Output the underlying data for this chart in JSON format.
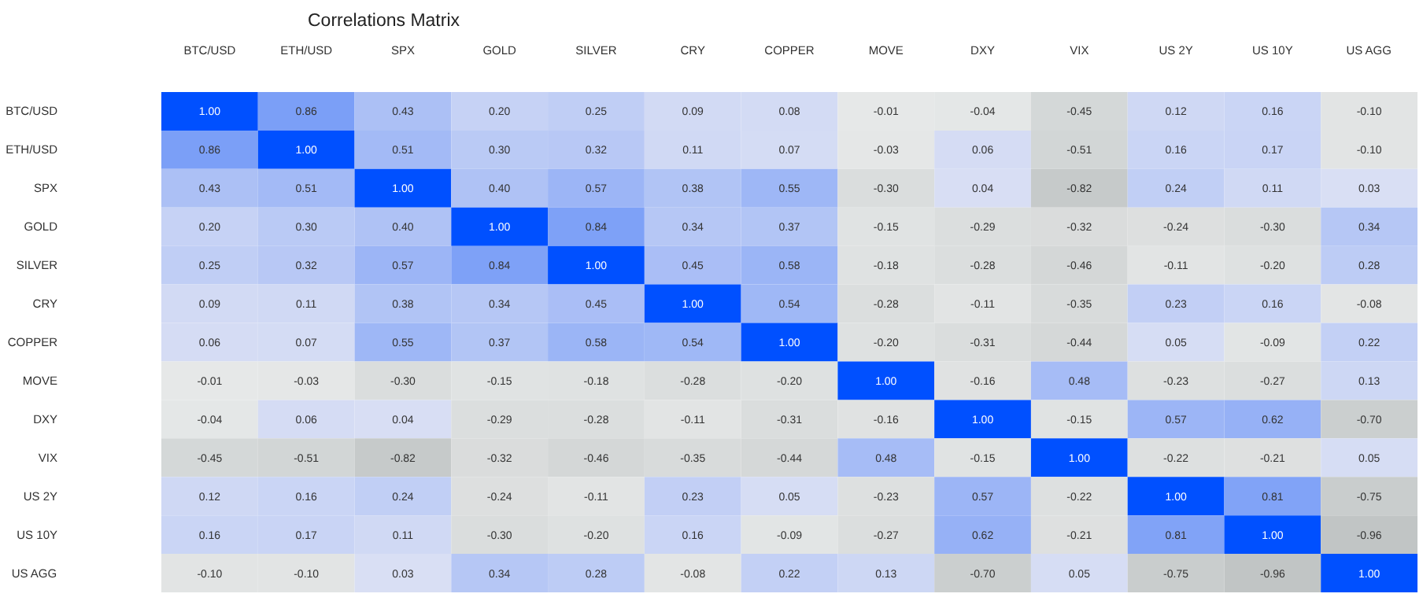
{
  "chart_data": {
    "type": "heatmap",
    "title": "Correlations Matrix",
    "categories": [
      "BTC/USD",
      "ETH/USD",
      "SPX",
      "GOLD",
      "SILVER",
      "CRY",
      "COPPER",
      "MOVE",
      "DXY",
      "VIX",
      "US 2Y",
      "US 10Y",
      "US AGG"
    ],
    "y_categories": [
      "BTC/USD",
      "ETH/USD",
      "SPX",
      "GOLD",
      "SILVER",
      "CRY",
      "COPPER",
      "MOVE",
      "DXY",
      "VIX",
      "US 2Y",
      "US 10Y",
      "US AGG"
    ],
    "cells": [
      [
        1.0,
        0.86,
        0.43,
        0.2,
        0.25,
        0.09,
        0.08,
        -0.01,
        -0.04,
        -0.45,
        0.12,
        0.16,
        -0.1
      ],
      [
        0.86,
        1.0,
        0.51,
        0.3,
        0.32,
        0.11,
        0.07,
        -0.03,
        0.06,
        -0.51,
        0.16,
        0.17,
        -0.1
      ],
      [
        0.43,
        0.51,
        1.0,
        0.4,
        0.57,
        0.38,
        0.55,
        -0.3,
        0.04,
        -0.82,
        0.24,
        0.11,
        0.03
      ],
      [
        0.2,
        0.3,
        0.4,
        1.0,
        0.84,
        0.34,
        0.37,
        -0.15,
        -0.29,
        -0.32,
        -0.24,
        -0.3,
        0.34
      ],
      [
        0.25,
        0.32,
        0.57,
        0.84,
        1.0,
        0.45,
        0.58,
        -0.18,
        -0.28,
        -0.46,
        -0.11,
        -0.2,
        0.28
      ],
      [
        0.09,
        0.11,
        0.38,
        0.34,
        0.45,
        1.0,
        0.54,
        -0.28,
        -0.11,
        -0.35,
        0.23,
        0.16,
        -0.08
      ],
      [
        0.06,
        0.07,
        0.55,
        0.37,
        0.58,
        0.54,
        1.0,
        -0.2,
        -0.31,
        -0.44,
        0.05,
        -0.09,
        0.22
      ],
      [
        -0.01,
        -0.03,
        -0.3,
        -0.15,
        -0.18,
        -0.28,
        -0.2,
        1.0,
        -0.16,
        0.48,
        -0.23,
        -0.27,
        0.13
      ],
      [
        -0.04,
        0.06,
        0.04,
        -0.29,
        -0.28,
        -0.11,
        -0.31,
        -0.16,
        1.0,
        -0.15,
        0.57,
        0.62,
        -0.7
      ],
      [
        -0.45,
        -0.51,
        -0.82,
        -0.32,
        -0.46,
        -0.35,
        -0.44,
        0.48,
        -0.15,
        1.0,
        -0.22,
        -0.21,
        0.05
      ],
      [
        0.12,
        0.16,
        0.24,
        -0.24,
        -0.11,
        0.23,
        0.05,
        -0.23,
        0.57,
        -0.22,
        1.0,
        0.81,
        -0.75
      ],
      [
        0.16,
        0.17,
        0.11,
        -0.3,
        -0.2,
        0.16,
        -0.09,
        -0.27,
        0.62,
        -0.21,
        0.81,
        1.0,
        -0.96
      ],
      [
        -0.1,
        -0.1,
        0.03,
        0.34,
        0.28,
        -0.08,
        0.22,
        0.13,
        -0.7,
        0.05,
        -0.75,
        -0.96,
        1.0
      ]
    ],
    "cell_labels": [
      [
        "1.00",
        "0.86",
        "0.43",
        "0.20",
        "0.25",
        "0.09",
        "0.08",
        "-0.01",
        "-0.04",
        "-0.45",
        "0.12",
        "0.16",
        "-0.10"
      ],
      [
        "0.86",
        "1.00",
        "0.51",
        "0.30",
        "0.32",
        "0.11",
        "0.07",
        "-0.03",
        "0.06",
        "-0.51",
        "0.16",
        "0.17",
        "-0.10"
      ],
      [
        "0.43",
        "0.51",
        "1.00",
        "0.40",
        "0.57",
        "0.38",
        "0.55",
        "-0.30",
        "0.04",
        "-0.82",
        "0.24",
        "0.11",
        "0.03"
      ],
      [
        "0.20",
        "0.30",
        "0.40",
        "1.00",
        "0.84",
        "0.34",
        "0.37",
        "-0.15",
        "-0.29",
        "-0.32",
        "-0.24",
        "-0.30",
        "0.34"
      ],
      [
        "0.25",
        "0.32",
        "0.57",
        "0.84",
        "1.00",
        "0.45",
        "0.58",
        "-0.18",
        "-0.28",
        "-0.46",
        "-0.11",
        "-0.20",
        "0.28"
      ],
      [
        "0.09",
        "0.11",
        "0.38",
        "0.34",
        "0.45",
        "1.00",
        "0.54",
        "-0.28",
        "-0.11",
        "-0.35",
        "0.23",
        "0.16",
        "-0.08"
      ],
      [
        "0.06",
        "0.07",
        "0.55",
        "0.37",
        "0.58",
        "0.54",
        "1.00",
        "-0.20",
        "-0.31",
        "-0.44",
        "0.05",
        "-0.09",
        "0.22"
      ],
      [
        "-0.01",
        "-0.03",
        "-0.30",
        "-0.15",
        "-0.18",
        "-0.28",
        "-0.20",
        "1.00",
        "-0.16",
        "0.48",
        "-0.23",
        "-0.27",
        "0.13"
      ],
      [
        "-0.04",
        "0.06",
        "0.04",
        "-0.29",
        "-0.28",
        "-0.11",
        "-0.31",
        "-0.16",
        "1.00",
        "-0.15",
        "0.57",
        "0.62",
        "-0.70"
      ],
      [
        "-0.45",
        "-0.51",
        "-0.82",
        "-0.32",
        "-0.46",
        "-0.35",
        "-0.44",
        "0.48",
        "-0.15",
        "1.00",
        "-0.22",
        "-0.21",
        "0.05"
      ],
      [
        "0.12",
        "0.16",
        "0.24",
        "-0.24",
        "-0.11",
        "0.23",
        "0.05",
        "-0.23",
        "0.57",
        "-0.22",
        "1.00",
        "0.81",
        "-0.75"
      ],
      [
        "0.16",
        "0.17",
        "0.11",
        "-0.30",
        "-0.20",
        "0.16",
        "-0.09",
        "-0.27",
        "0.62",
        "-0.21",
        "0.81",
        "1.00",
        "-0.96"
      ],
      [
        "-0.10",
        "-0.10",
        "0.03",
        "0.34",
        "0.28",
        "-0.08",
        "0.22",
        "0.13",
        "-0.70",
        "0.05",
        "-0.75",
        "-0.96",
        "1.00"
      ]
    ]
  }
}
